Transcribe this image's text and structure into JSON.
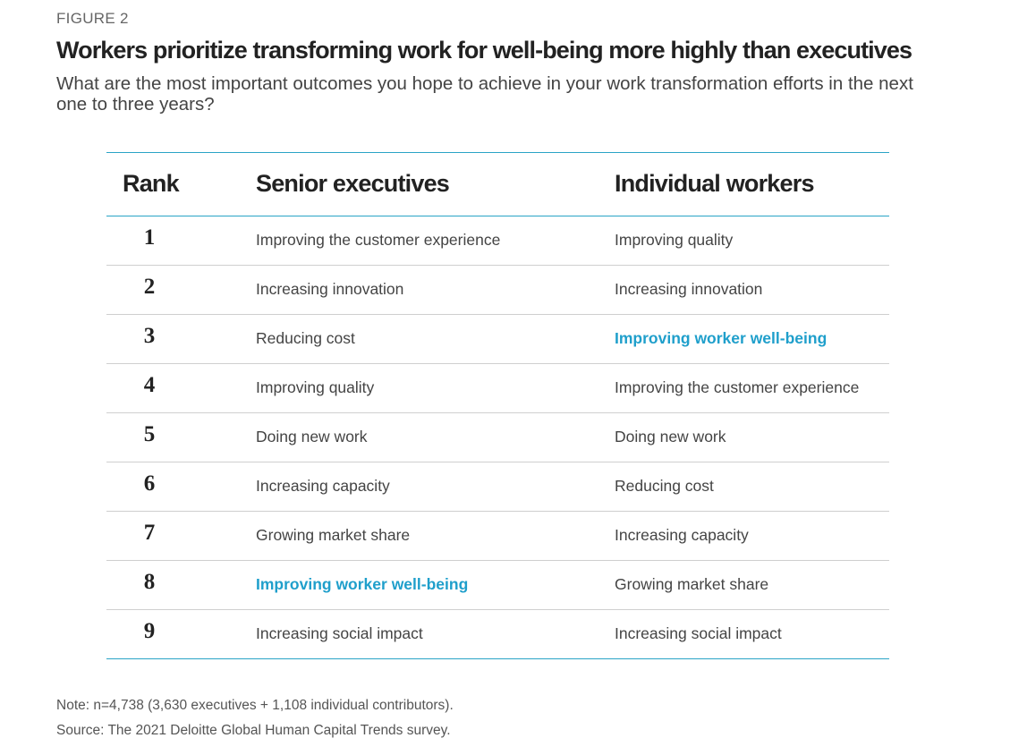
{
  "figure_label": "FIGURE 2",
  "title": "Workers prioritize transforming work for well-being more highly than executives",
  "subtitle": "What are the most important outcomes you hope to achieve in your work transformation efforts in the next one to three years?",
  "table": {
    "headers": {
      "rank": "Rank",
      "executives": "Senior executives",
      "workers": "Individual workers"
    },
    "rows": [
      {
        "rank": "1",
        "executives": "Improving the customer experience",
        "workers": "Improving quality"
      },
      {
        "rank": "2",
        "executives": "Increasing innovation",
        "workers": "Increasing innovation"
      },
      {
        "rank": "3",
        "executives": "Reducing cost",
        "workers": "Improving worker well-being"
      },
      {
        "rank": "4",
        "executives": "Improving quality",
        "workers": "Improving the customer experience"
      },
      {
        "rank": "5",
        "executives": "Doing new work",
        "workers": "Doing new work"
      },
      {
        "rank": "6",
        "executives": "Increasing capacity",
        "workers": "Reducing cost"
      },
      {
        "rank": "7",
        "executives": "Growing market share",
        "workers": "Increasing capacity"
      },
      {
        "rank": "8",
        "executives": "Improving worker well-being",
        "workers": "Growing market share"
      },
      {
        "rank": "9",
        "executives": "Increasing social impact",
        "workers": "Increasing social impact"
      }
    ],
    "highlight_text": "Improving worker well-being",
    "colors": {
      "highlight": "#1f9fcb",
      "rule": "#2aa4c6"
    }
  },
  "note": "Note: n=4,738 (3,630 executives + 1,108 individual contributors).",
  "source": "Source: The 2021 Deloitte Global Human Capital Trends survey."
}
